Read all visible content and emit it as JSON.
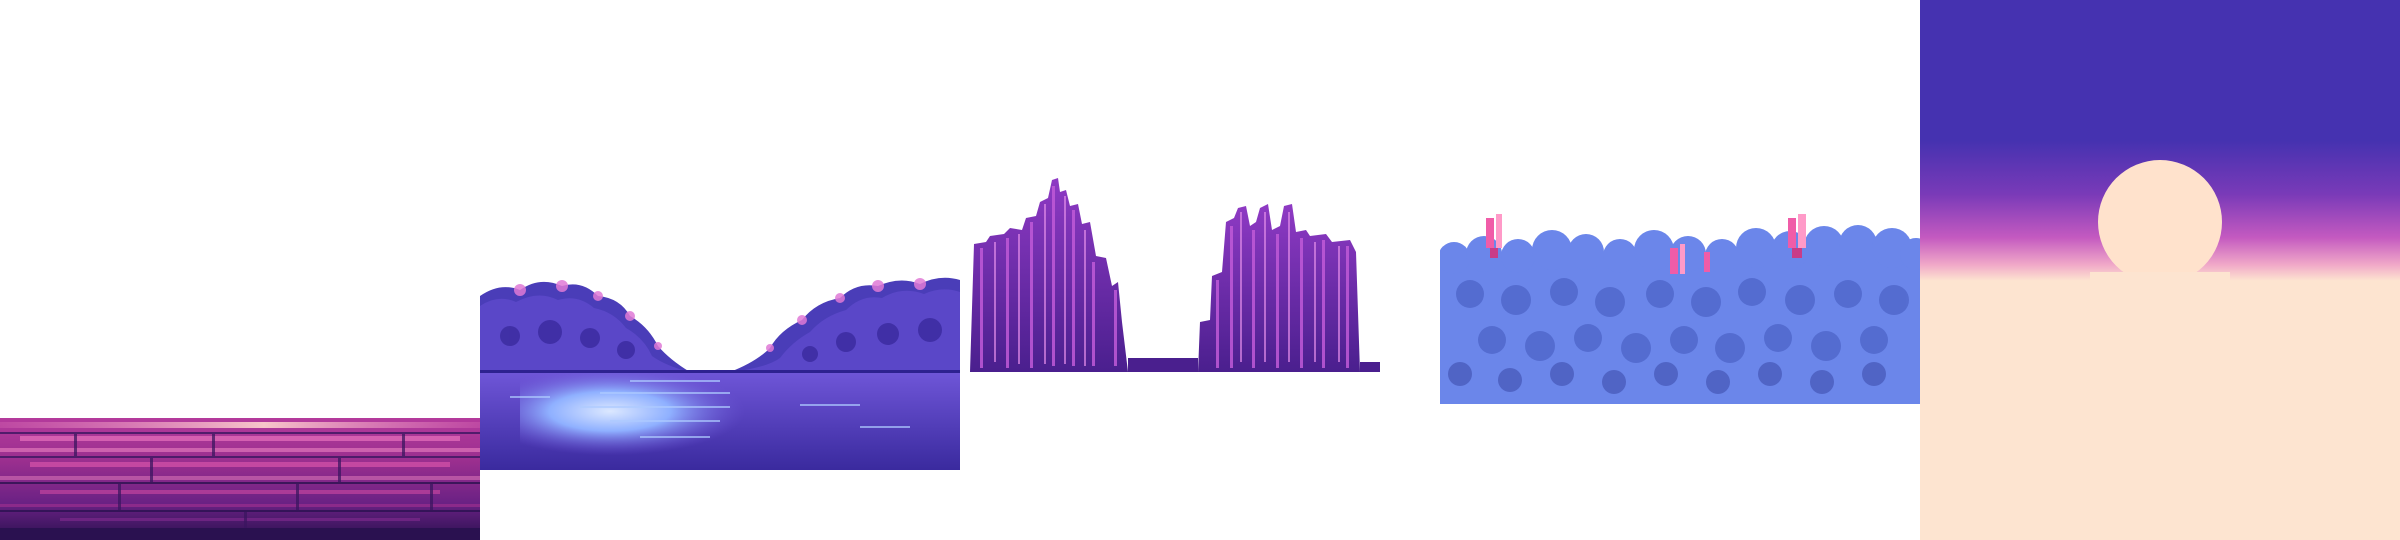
{
  "scene": {
    "background_color": "#ffffff",
    "layers": [
      {
        "name": "platform-planks",
        "palette": [
          "#2a1150",
          "#5a1d7a",
          "#9b2f8f",
          "#d04fa6",
          "#f28ac4",
          "#ffd6cf"
        ]
      },
      {
        "name": "lake-valley",
        "palette": [
          "#3a2a9e",
          "#4a3db8",
          "#6f56d8",
          "#a259d6",
          "#e07ad6",
          "#8fb0ff",
          "#dce8ff"
        ]
      },
      {
        "name": "crystal-spires",
        "palette": [
          "#4a1f8e",
          "#6a2aa8",
          "#8f3ac4",
          "#c05ad8",
          "#e08ae8"
        ]
      },
      {
        "name": "forest-canopy",
        "palette": [
          "#6b86ea",
          "#4d64c8",
          "#3a4aa8",
          "#f05ca8",
          "#ff9ac8"
        ]
      },
      {
        "name": "sky-with-sun",
        "palette": [
          "#4532b0",
          "#7a3ab8",
          "#c45ac0",
          "#ffe2cc",
          "#fde4d0"
        ]
      }
    ]
  }
}
